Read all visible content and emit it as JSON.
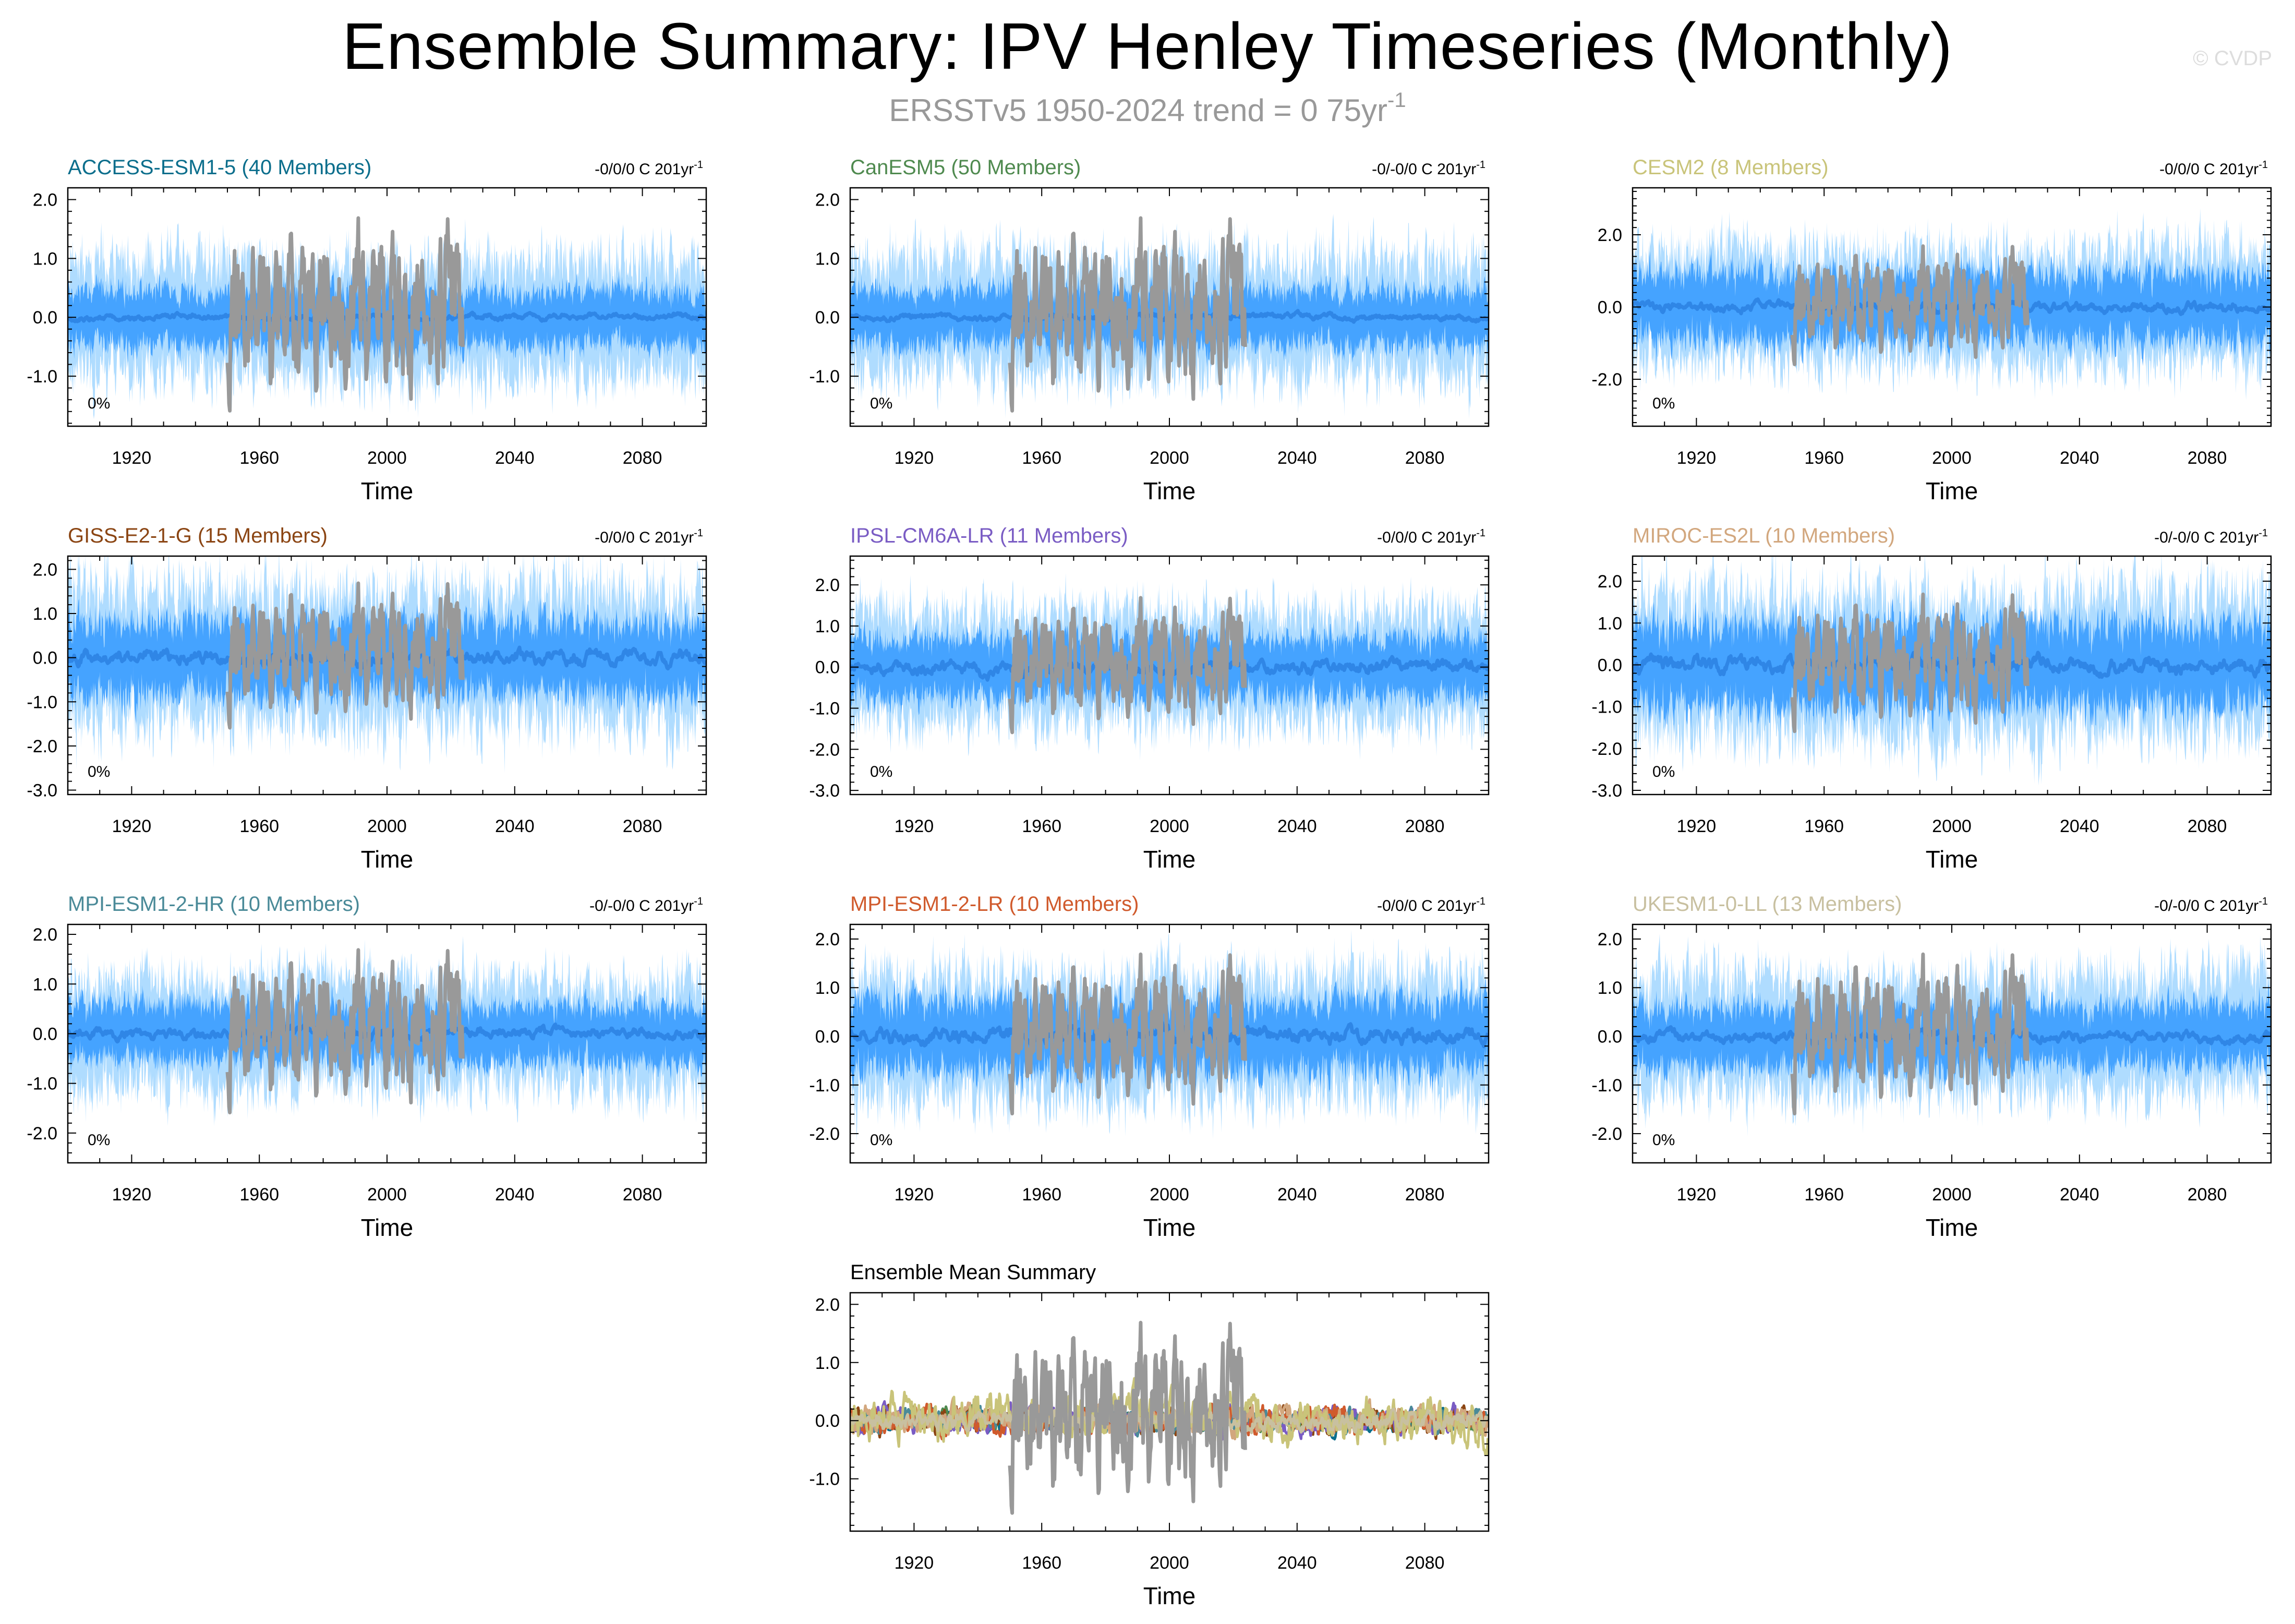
{
  "header": {
    "title": "Ensemble Summary: IPV Henley Timeseries (Monthly)",
    "subtitle": "ERSSTv5 1950-2024 trend = 0 75yr",
    "subtitle_exponent": "-1",
    "watermark": "© CVDP"
  },
  "colors": {
    "observations": "#999999",
    "envelope_outer": "#a6d8ff",
    "envelope_inner": "#3399ff",
    "ensemble_mean": "#2f86e6"
  },
  "chart_data": [
    {
      "type": "line",
      "title": "ACCESS-ESM1-5 (40 Members)",
      "title_color": "#0b6e8c",
      "trend_label": "-0/0/0 C 201yr",
      "trend_exponent": "-1",
      "percent_label": "0%",
      "xlabel": "Time",
      "x_ticks": [
        "1920",
        "1960",
        "2000",
        "2040",
        "2080"
      ],
      "x_tick_values": [
        1920,
        1960,
        2000,
        2040,
        2080
      ],
      "xlim": [
        1900,
        2100
      ],
      "y_ticks": [
        "2.0",
        "1.0",
        "0.0",
        "-1.0"
      ],
      "y_tick_values": [
        2,
        1,
        0,
        -1
      ],
      "ylim": [
        -1.85,
        2.2
      ],
      "series": [
        {
          "role": "obs",
          "x_range": [
            1950,
            2024
          ],
          "amp": 0.75
        },
        {
          "role": "envelope_outer",
          "x_range": [
            1900,
            2100
          ],
          "amp": 0.95
        },
        {
          "role": "envelope_inner",
          "x_range": [
            1900,
            2100
          ],
          "amp": 0.45
        },
        {
          "role": "mean",
          "x_range": [
            1900,
            2100
          ],
          "amp": 0.1
        }
      ]
    },
    {
      "type": "line",
      "title": "CanESM5 (50 Members)",
      "title_color": "#4f8a4f",
      "trend_label": "-0/-0/0 C 201yr",
      "trend_exponent": "-1",
      "percent_label": "0%",
      "xlabel": "Time",
      "x_ticks": [
        "1920",
        "1960",
        "2000",
        "2040",
        "2080"
      ],
      "x_tick_values": [
        1920,
        1960,
        2000,
        2040,
        2080
      ],
      "xlim": [
        1900,
        2100
      ],
      "y_ticks": [
        "2.0",
        "1.0",
        "0.0",
        "-1.0"
      ],
      "y_tick_values": [
        2,
        1,
        0,
        -1
      ],
      "ylim": [
        -1.85,
        2.2
      ],
      "series": [
        {
          "role": "obs",
          "x_range": [
            1950,
            2024
          ],
          "amp": 0.75
        },
        {
          "role": "envelope_outer",
          "x_range": [
            1900,
            2100
          ],
          "amp": 0.95
        },
        {
          "role": "envelope_inner",
          "x_range": [
            1900,
            2100
          ],
          "amp": 0.45
        },
        {
          "role": "mean",
          "x_range": [
            1900,
            2100
          ],
          "amp": 0.1
        }
      ]
    },
    {
      "type": "line",
      "title": "CESM2 (8 Members)",
      "title_color": "#c9c47a",
      "trend_label": "-0/0/0 C 201yr",
      "trend_exponent": "-1",
      "percent_label": "0%",
      "xlabel": "Time",
      "x_ticks": [
        "1920",
        "1960",
        "2000",
        "2040",
        "2080"
      ],
      "x_tick_values": [
        1920,
        1960,
        2000,
        2040,
        2080
      ],
      "xlim": [
        1900,
        2100
      ],
      "y_ticks": [
        "2.0",
        "0.0",
        "-2.0"
      ],
      "y_tick_values": [
        2,
        0,
        -2
      ],
      "ylim": [
        -3.3,
        3.3
      ],
      "series": [
        {
          "role": "obs",
          "x_range": [
            1950,
            2024
          ],
          "amp": 0.75
        },
        {
          "role": "envelope_outer",
          "x_range": [
            1900,
            2100
          ],
          "amp": 1.5
        },
        {
          "role": "envelope_inner",
          "x_range": [
            1900,
            2100
          ],
          "amp": 0.9
        },
        {
          "role": "mean",
          "x_range": [
            1900,
            2100
          ],
          "amp": 0.25
        }
      ]
    },
    {
      "type": "line",
      "title": "GISS-E2-1-G (15 Members)",
      "title_color": "#8b4513",
      "trend_label": "-0/0/0 C 201yr",
      "trend_exponent": "-1",
      "percent_label": "0%",
      "xlabel": "Time",
      "x_ticks": [
        "1920",
        "1960",
        "2000",
        "2040",
        "2080"
      ],
      "x_tick_values": [
        1920,
        1960,
        2000,
        2040,
        2080
      ],
      "xlim": [
        1900,
        2100
      ],
      "y_ticks": [
        "2.0",
        "1.0",
        "0.0",
        "-1.0",
        "-2.0",
        "-3.0"
      ],
      "y_tick_values": [
        2,
        1,
        0,
        -1,
        -2,
        -3
      ],
      "ylim": [
        -3.1,
        2.3
      ],
      "series": [
        {
          "role": "obs",
          "x_range": [
            1950,
            2024
          ],
          "amp": 0.75
        },
        {
          "role": "envelope_outer",
          "x_range": [
            1900,
            2100
          ],
          "amp": 1.45
        },
        {
          "role": "envelope_inner",
          "x_range": [
            1900,
            2100
          ],
          "amp": 0.8
        },
        {
          "role": "mean",
          "x_range": [
            1900,
            2100
          ],
          "amp": 0.3
        }
      ]
    },
    {
      "type": "line",
      "title": "IPSL-CM6A-LR (11 Members)",
      "title_color": "#7a5cc4",
      "trend_label": "-0/0/0 C 201yr",
      "trend_exponent": "-1",
      "percent_label": "0%",
      "xlabel": "Time",
      "x_ticks": [
        "1920",
        "1960",
        "2000",
        "2040",
        "2080"
      ],
      "x_tick_values": [
        1920,
        1960,
        2000,
        2040,
        2080
      ],
      "xlim": [
        1900,
        2100
      ],
      "y_ticks": [
        "2.0",
        "1.0",
        "0.0",
        "-1.0",
        "-2.0",
        "-3.0"
      ],
      "y_tick_values": [
        2,
        1,
        0,
        -1,
        -2,
        -3
      ],
      "ylim": [
        -3.1,
        2.7
      ],
      "series": [
        {
          "role": "obs",
          "x_range": [
            1950,
            2024
          ],
          "amp": 0.75
        },
        {
          "role": "envelope_outer",
          "x_range": [
            1900,
            2100
          ],
          "amp": 1.3
        },
        {
          "role": "envelope_inner",
          "x_range": [
            1900,
            2100
          ],
          "amp": 0.7
        },
        {
          "role": "mean",
          "x_range": [
            1900,
            2100
          ],
          "amp": 0.3
        }
      ]
    },
    {
      "type": "line",
      "title": "MIROC-ES2L (10 Members)",
      "title_color": "#d2a77e",
      "trend_label": "-0/-0/0 C 201yr",
      "trend_exponent": "-1",
      "percent_label": "0%",
      "xlabel": "Time",
      "x_ticks": [
        "1920",
        "1960",
        "2000",
        "2040",
        "2080"
      ],
      "x_tick_values": [
        1920,
        1960,
        2000,
        2040,
        2080
      ],
      "xlim": [
        1900,
        2100
      ],
      "y_ticks": [
        "2.0",
        "1.0",
        "0.0",
        "-1.0",
        "-2.0",
        "-3.0"
      ],
      "y_tick_values": [
        2,
        1,
        0,
        -1,
        -2,
        -3
      ],
      "ylim": [
        -3.1,
        2.6
      ],
      "series": [
        {
          "role": "obs",
          "x_range": [
            1950,
            2024
          ],
          "amp": 0.75
        },
        {
          "role": "envelope_outer",
          "x_range": [
            1900,
            2100
          ],
          "amp": 1.6
        },
        {
          "role": "envelope_inner",
          "x_range": [
            1900,
            2100
          ],
          "amp": 0.95
        },
        {
          "role": "mean",
          "x_range": [
            1900,
            2100
          ],
          "amp": 0.35
        }
      ]
    },
    {
      "type": "line",
      "title": "MPI-ESM1-2-HR (10 Members)",
      "title_color": "#4a8a98",
      "trend_label": "-0/-0/0 C 201yr",
      "trend_exponent": "-1",
      "percent_label": "0%",
      "xlabel": "Time",
      "x_ticks": [
        "1920",
        "1960",
        "2000",
        "2040",
        "2080"
      ],
      "x_tick_values": [
        1920,
        1960,
        2000,
        2040,
        2080
      ],
      "xlim": [
        1900,
        2100
      ],
      "y_ticks": [
        "2.0",
        "1.0",
        "0.0",
        "-1.0",
        "-2.0"
      ],
      "y_tick_values": [
        2,
        1,
        0,
        -1,
        -2
      ],
      "ylim": [
        -2.6,
        2.2
      ],
      "series": [
        {
          "role": "obs",
          "x_range": [
            1950,
            2024
          ],
          "amp": 0.75
        },
        {
          "role": "envelope_outer",
          "x_range": [
            1900,
            2100
          ],
          "amp": 1.05
        },
        {
          "role": "envelope_inner",
          "x_range": [
            1900,
            2100
          ],
          "amp": 0.55
        },
        {
          "role": "mean",
          "x_range": [
            1900,
            2100
          ],
          "amp": 0.2
        }
      ]
    },
    {
      "type": "line",
      "title": "MPI-ESM1-2-LR (10 Members)",
      "title_color": "#d05a2c",
      "trend_label": "-0/0/0 C 201yr",
      "trend_exponent": "-1",
      "percent_label": "0%",
      "xlabel": "Time",
      "x_ticks": [
        "1920",
        "1960",
        "2000",
        "2040",
        "2080"
      ],
      "x_tick_values": [
        1920,
        1960,
        2000,
        2040,
        2080
      ],
      "xlim": [
        1900,
        2100
      ],
      "y_ticks": [
        "2.0",
        "1.0",
        "0.0",
        "-1.0",
        "-2.0"
      ],
      "y_tick_values": [
        2,
        1,
        0,
        -1,
        -2
      ],
      "ylim": [
        -2.6,
        2.3
      ],
      "series": [
        {
          "role": "obs",
          "x_range": [
            1950,
            2024
          ],
          "amp": 0.75
        },
        {
          "role": "envelope_outer",
          "x_range": [
            1900,
            2100
          ],
          "amp": 1.2
        },
        {
          "role": "envelope_inner",
          "x_range": [
            1900,
            2100
          ],
          "amp": 0.7
        },
        {
          "role": "mean",
          "x_range": [
            1900,
            2100
          ],
          "amp": 0.3
        }
      ]
    },
    {
      "type": "line",
      "title": "UKESM1-0-LL (13 Members)",
      "title_color": "#c8c0a0",
      "trend_label": "-0/-0/0 C 201yr",
      "trend_exponent": "-1",
      "percent_label": "0%",
      "xlabel": "Time",
      "x_ticks": [
        "1920",
        "1960",
        "2000",
        "2040",
        "2080"
      ],
      "x_tick_values": [
        1920,
        1960,
        2000,
        2040,
        2080
      ],
      "xlim": [
        1900,
        2100
      ],
      "y_ticks": [
        "2.0",
        "1.0",
        "0.0",
        "-1.0",
        "-2.0"
      ],
      "y_tick_values": [
        2,
        1,
        0,
        -1,
        -2
      ],
      "ylim": [
        -2.6,
        2.3
      ],
      "series": [
        {
          "role": "obs",
          "x_range": [
            1950,
            2024
          ],
          "amp": 0.75
        },
        {
          "role": "envelope_outer",
          "x_range": [
            1900,
            2100
          ],
          "amp": 1.15
        },
        {
          "role": "envelope_inner",
          "x_range": [
            1900,
            2100
          ],
          "amp": 0.6
        },
        {
          "role": "mean",
          "x_range": [
            1900,
            2100
          ],
          "amp": 0.2
        }
      ]
    },
    {
      "type": "line",
      "title": "Ensemble Mean Summary",
      "title_color": "#000000",
      "trend_label": "",
      "trend_exponent": "",
      "percent_label": "",
      "xlabel": "Time",
      "x_ticks": [
        "1920",
        "1960",
        "2000",
        "2040",
        "2080"
      ],
      "x_tick_values": [
        1920,
        1960,
        2000,
        2040,
        2080
      ],
      "xlim": [
        1900,
        2100
      ],
      "y_ticks": [
        "2.0",
        "1.0",
        "0.0",
        "-1.0"
      ],
      "y_tick_values": [
        2,
        1,
        0,
        -1
      ],
      "ylim": [
        -1.9,
        2.2
      ],
      "series": [
        {
          "role": "obs",
          "x_range": [
            1950,
            2024
          ],
          "amp": 0.75
        },
        {
          "role": "model_mean",
          "color": "#0b6e8c",
          "x_range": [
            1900,
            2100
          ],
          "amp": 0.22
        },
        {
          "role": "model_mean",
          "color": "#4f8a4f",
          "x_range": [
            1900,
            2100
          ],
          "amp": 0.22
        },
        {
          "role": "model_mean",
          "color": "#8b4513",
          "x_range": [
            1900,
            2100
          ],
          "amp": 0.3
        },
        {
          "role": "model_mean",
          "color": "#7a5cc4",
          "x_range": [
            1900,
            2100
          ],
          "amp": 0.3
        },
        {
          "role": "model_mean",
          "color": "#4a8a98",
          "x_range": [
            1900,
            2100
          ],
          "amp": 0.25
        },
        {
          "role": "model_mean",
          "color": "#d05a2c",
          "x_range": [
            1900,
            2100
          ],
          "amp": 0.3
        },
        {
          "role": "model_mean",
          "color": "#d2a77e",
          "x_range": [
            1900,
            2100
          ],
          "amp": 0.3
        },
        {
          "role": "model_mean",
          "color": "#c9c47a",
          "x_range": [
            1900,
            2100
          ],
          "amp": 0.5
        },
        {
          "role": "model_mean",
          "color": "#c8c0a0",
          "x_range": [
            1900,
            2100
          ],
          "amp": 0.2
        }
      ]
    }
  ]
}
